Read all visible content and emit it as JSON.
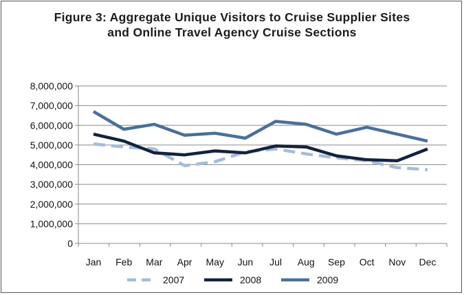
{
  "chart_data": {
    "type": "line",
    "title_line1": "Figure 3: Aggregate Unique Visitors to Cruise Supplier Sites",
    "title_line2": "and Online Travel Agency Cruise Sections",
    "xlabel": "",
    "ylabel": "",
    "categories": [
      "Jan",
      "Feb",
      "Mar",
      "Apr",
      "May",
      "Jun",
      "Jul",
      "Aug",
      "Sep",
      "Oct",
      "Nov",
      "Dec"
    ],
    "ylim": [
      0,
      8000000
    ],
    "yticks": [
      0,
      1000000,
      2000000,
      3000000,
      4000000,
      5000000,
      6000000,
      7000000,
      8000000
    ],
    "ytick_labels": [
      "0",
      "1,000,000",
      "2,000,000",
      "3,000,000",
      "4,000,000",
      "5,000,000",
      "6,000,000",
      "7,000,000",
      "8,000,000"
    ],
    "grid": true,
    "legend_position": "bottom",
    "series": [
      {
        "name": "2007",
        "color": "#a4bcd8",
        "style": "dashed",
        "values": [
          5050000,
          4900000,
          4800000,
          3950000,
          4150000,
          4650000,
          4800000,
          4550000,
          4350000,
          4200000,
          3850000,
          3750000
        ]
      },
      {
        "name": "2008",
        "color": "#13233d",
        "style": "solid",
        "values": [
          5550000,
          5200000,
          4600000,
          4500000,
          4700000,
          4600000,
          4950000,
          4900000,
          4450000,
          4250000,
          4200000,
          4800000
        ]
      },
      {
        "name": "2009",
        "color": "#4a6f9a",
        "style": "solid",
        "values": [
          6700000,
          5800000,
          6050000,
          5500000,
          5600000,
          5350000,
          6200000,
          6050000,
          5550000,
          5900000,
          5550000,
          5200000
        ]
      }
    ]
  }
}
